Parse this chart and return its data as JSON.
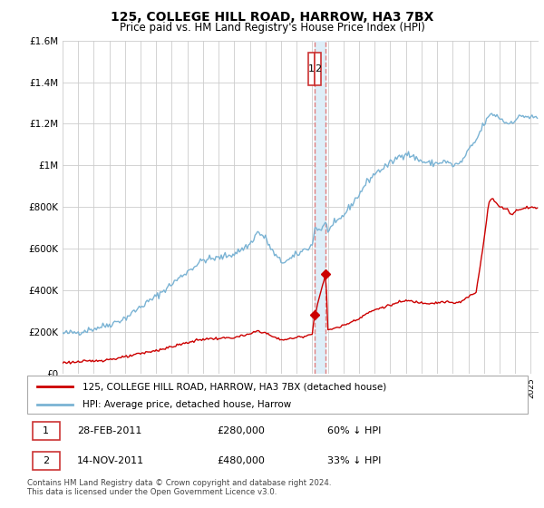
{
  "title": "125, COLLEGE HILL ROAD, HARROW, HA3 7BX",
  "subtitle": "Price paid vs. HM Land Registry's House Price Index (HPI)",
  "hpi_label": "HPI: Average price, detached house, Harrow",
  "property_label": "125, COLLEGE HILL ROAD, HARROW, HA3 7BX (detached house)",
  "transaction1_date": "28-FEB-2011",
  "transaction1_price": "£280,000",
  "transaction1_pct": "60% ↓ HPI",
  "transaction2_date": "14-NOV-2011",
  "transaction2_price": "£480,000",
  "transaction2_pct": "33% ↓ HPI",
  "footer": "Contains HM Land Registry data © Crown copyright and database right 2024.\nThis data is licensed under the Open Government Licence v3.0.",
  "hpi_color": "#7ab3d4",
  "property_color": "#cc0000",
  "vline_color": "#e08080",
  "shade_color": "#deeef8",
  "transaction1_x": 2011.15,
  "transaction2_x": 2011.87,
  "ylim": [
    0,
    1600000
  ],
  "yticks": [
    0,
    200000,
    400000,
    600000,
    800000,
    1000000,
    1200000,
    1400000,
    1600000
  ],
  "ytick_labels": [
    "£0",
    "£200K",
    "£400K",
    "£600K",
    "£800K",
    "£1M",
    "£1.2M",
    "£1.4M",
    "£1.6M"
  ],
  "xlim_min": 1995.0,
  "xlim_max": 2025.5,
  "marker1_x": 2011.15,
  "marker1_y": 280000,
  "marker2_x": 2011.87,
  "marker2_y": 480000
}
